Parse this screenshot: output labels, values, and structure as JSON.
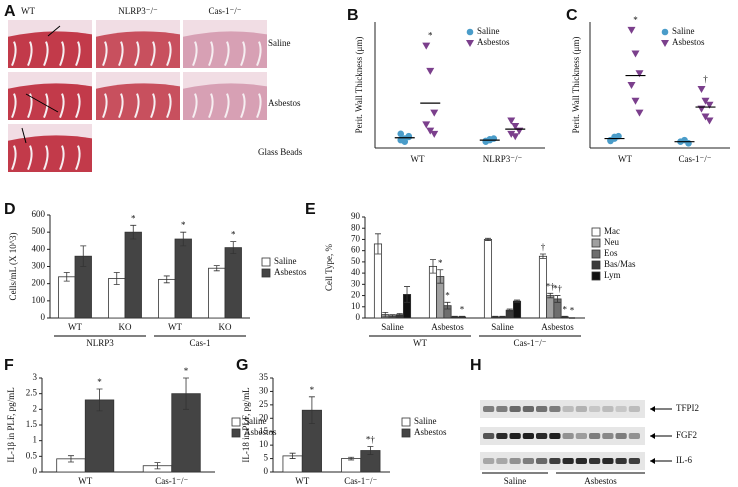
{
  "panel_a": {
    "label": "A",
    "columns": [
      "WT",
      "NLRP3⁻/⁻",
      "Cas-1⁻/⁻"
    ],
    "rows": [
      "Saline",
      "Asbestos",
      "Glass Beads"
    ]
  },
  "panel_h": {
    "label": "H",
    "proteins": [
      "TFPI2",
      "FGF2",
      "IL-6"
    ],
    "groups": [
      "Saline",
      "Asbestos"
    ]
  },
  "chart_data": [
    {
      "type": "strip",
      "panel": "B",
      "y_label": "Perit. Wall Thickness (μm)",
      "ylim": [
        0,
        160
      ],
      "categories": [
        "WT",
        "NLRP3⁻/⁻"
      ],
      "series": [
        {
          "name": "Saline",
          "color": "#4a9cc9",
          "marker": "circle",
          "values": [
            [
              10,
              12,
              15,
              18,
              8,
              14
            ],
            [
              8,
              10,
              12,
              9,
              11
            ]
          ],
          "means": [
            13,
            10
          ],
          "annotations": [
            null,
            null
          ]
        },
        {
          "name": "Asbestos",
          "color": "#7b3f8c",
          "marker": "triangle",
          "values": [
            [
              130,
              98,
              45,
              30,
              22,
              18
            ],
            [
              35,
              28,
              22,
              18,
              15
            ]
          ],
          "means": [
            57,
            24
          ],
          "annotations": [
            "*",
            null
          ]
        }
      ]
    },
    {
      "type": "strip",
      "panel": "C",
      "y_label": "Perit. Wall Thickness (μm)",
      "ylim": [
        0,
        160
      ],
      "categories": [
        "WT",
        "Cas-1⁻/⁻"
      ],
      "series": [
        {
          "name": "Saline",
          "color": "#4a9cc9",
          "marker": "circle",
          "values": [
            [
              10,
              12,
              15,
              9,
              14
            ],
            [
              8,
              10,
              6
            ]
          ],
          "means": [
            12,
            8
          ],
          "annotations": [
            null,
            null
          ]
        },
        {
          "name": "Asbestos",
          "color": "#7b3f8c",
          "marker": "triangle",
          "values": [
            [
              150,
              120,
              95,
              80,
              60,
              45
            ],
            [
              75,
              60,
              55,
              50,
              40,
              35
            ]
          ],
          "means": [
            92,
            52
          ],
          "annotations": [
            "*",
            "†"
          ]
        }
      ]
    },
    {
      "type": "bar",
      "panel": "D",
      "y_label": "Cells/mL (X 10^3)",
      "ylim": [
        0,
        600
      ],
      "yticks": [
        0,
        100,
        200,
        300,
        400,
        500,
        600
      ],
      "categories": [
        "WT",
        "KO",
        "WT",
        "KO"
      ],
      "group_labels": [
        "NLRP3",
        "Cas-1"
      ],
      "series": [
        {
          "name": "Saline",
          "color": "#ffffff",
          "values": [
            240,
            230,
            225,
            290
          ],
          "errors": [
            25,
            35,
            20,
            15
          ],
          "annotations": [
            null,
            null,
            null,
            null
          ]
        },
        {
          "name": "Asbestos",
          "color": "#444444",
          "values": [
            360,
            500,
            460,
            410
          ],
          "errors": [
            60,
            40,
            40,
            35
          ],
          "annotations": [
            null,
            "*",
            "*",
            "*"
          ]
        }
      ]
    },
    {
      "type": "bar",
      "panel": "E",
      "y_label": "Cell Type, %",
      "ylim": [
        0,
        90
      ],
      "yticks": [
        0,
        10,
        20,
        30,
        40,
        50,
        60,
        70,
        80,
        90
      ],
      "categories": [
        "Saline",
        "Asbestos",
        "Saline",
        "Asbestos"
      ],
      "group_labels": [
        "WT",
        "Cas-1⁻/⁻"
      ],
      "series": [
        {
          "name": "Mac",
          "color": "#ffffff",
          "values": [
            66,
            46,
            70,
            55
          ],
          "errors": [
            9,
            6,
            1,
            2
          ],
          "annotations": [
            null,
            null,
            null,
            "†"
          ]
        },
        {
          "name": "Neu",
          "color": "#a0a0a0",
          "values": [
            3,
            37,
            1,
            20
          ],
          "errors": [
            2,
            6,
            0.5,
            2
          ],
          "annotations": [
            null,
            "*",
            null,
            "*†"
          ]
        },
        {
          "name": "Eos",
          "color": "#6e6e6e",
          "values": [
            2,
            11,
            1,
            17
          ],
          "errors": [
            1,
            3,
            0.5,
            3
          ],
          "annotations": [
            null,
            "*",
            null,
            "*†"
          ]
        },
        {
          "name": "Bas/Mas",
          "color": "#3a3a3a",
          "values": [
            3,
            1,
            7,
            1
          ],
          "errors": [
            1,
            0.5,
            1,
            0.5
          ],
          "annotations": [
            null,
            null,
            null,
            "*"
          ]
        },
        {
          "name": "Lym",
          "color": "#111111",
          "values": [
            21,
            1,
            15,
            0
          ],
          "errors": [
            7,
            0.5,
            1,
            0.3
          ],
          "annotations": [
            null,
            "*",
            null,
            "*"
          ]
        }
      ]
    },
    {
      "type": "bar",
      "panel": "F",
      "y_label": "IL-1β in PLF, pg/mL",
      "ylim": [
        0,
        3
      ],
      "yticks": [
        0,
        0.5,
        1,
        1.5,
        2,
        2.5,
        3
      ],
      "categories": [
        "WT",
        "Cas-1⁻/⁻"
      ],
      "series": [
        {
          "name": "Saline",
          "color": "#ffffff",
          "values": [
            0.42,
            0.2
          ],
          "errors": [
            0.1,
            0.1
          ],
          "annotations": [
            null,
            null
          ]
        },
        {
          "name": "Asbestos",
          "color": "#444444",
          "values": [
            2.3,
            2.5
          ],
          "errors": [
            0.35,
            0.5
          ],
          "annotations": [
            "*",
            "*"
          ]
        }
      ]
    },
    {
      "type": "bar",
      "panel": "G",
      "y_label": "IL-18 in PLF, pg/mL",
      "ylim": [
        0,
        35
      ],
      "yticks": [
        0,
        5,
        10,
        15,
        20,
        25,
        30,
        35
      ],
      "categories": [
        "WT",
        "Cas-1⁻/⁻"
      ],
      "series": [
        {
          "name": "Saline",
          "color": "#ffffff",
          "values": [
            6,
            5
          ],
          "errors": [
            1,
            0.5
          ],
          "annotations": [
            null,
            null
          ]
        },
        {
          "name": "Asbestos",
          "color": "#444444",
          "values": [
            23,
            8
          ],
          "errors": [
            5,
            1.5
          ],
          "annotations": [
            "*",
            "*†"
          ]
        }
      ]
    }
  ]
}
